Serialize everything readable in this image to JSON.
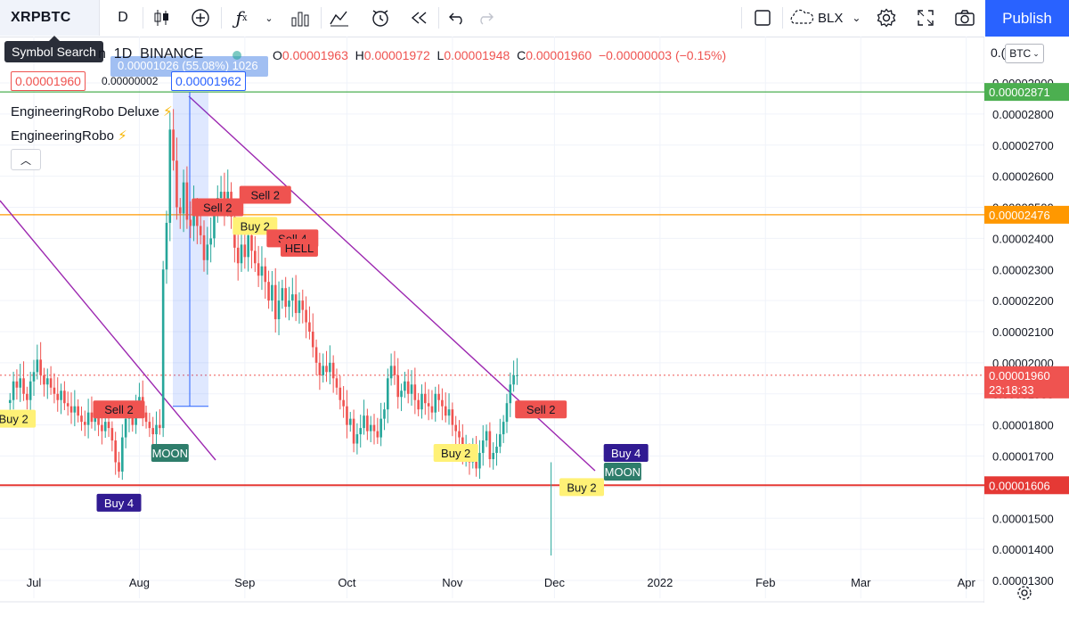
{
  "toolbar": {
    "symbol": "XRPBTC",
    "interval": "D",
    "compare_label": "BLX",
    "publish_label": "Publish",
    "tooltip": "Symbol Search"
  },
  "legend": {
    "title_fragment": "n",
    "interval": "1D",
    "exchange": "BINANCE",
    "o_key": "O",
    "o_val": "0.00001963",
    "h_key": "H",
    "h_val": "0.00001972",
    "l_key": "L",
    "l_val": "0.00001948",
    "c_key": "C",
    "c_val": "0.00001960",
    "change": "−0.00000003 (−0.15%)",
    "range_label": "0.00001026 (55.08%) 1026",
    "bid": "0.00001960",
    "spread": "0.00000002",
    "ask": "0.00001962",
    "indicator1": "EngineeringRobo Deluxe",
    "indicator2": "EngineeringRobo",
    "bolt": "⚡",
    "currency": "BTC",
    "currency_top_fragment": "0.("
  },
  "chart_data": {
    "type": "candlestick",
    "ylim": [
      1.22e-05,
      3.02e-05
    ],
    "y_ticks": [
      "0.00001300",
      "0.00001400",
      "0.00001500",
      "0.00001600",
      "0.00001700",
      "0.00001800",
      "0.00001900",
      "0.00002000",
      "0.00002100",
      "0.00002200",
      "0.00002300",
      "0.00002400",
      "0.00002500",
      "0.00002600",
      "0.00002700",
      "0.00002800",
      "0.00002900"
    ],
    "y_tick_values": [
      1.3e-05,
      1.4e-05,
      1.5e-05,
      1.6e-05,
      1.7e-05,
      1.8e-05,
      1.9e-05,
      2e-05,
      2.1e-05,
      2.2e-05,
      2.3e-05,
      2.4e-05,
      2.5e-05,
      2.6e-05,
      2.7e-05,
      2.8e-05,
      2.9e-05
    ],
    "x_ticks": [
      "Jul",
      "Aug",
      "Sep",
      "Oct",
      "Nov",
      "Dec",
      "2022",
      "Feb",
      "Mar",
      "Apr"
    ],
    "x_tick_days": [
      0,
      31,
      62,
      92,
      123,
      153,
      184,
      215,
      243,
      274
    ],
    "first_day": -7,
    "closes": [
      1.88e-05,
      1.94e-05,
      1.92e-05,
      1.95e-05,
      1.9e-05,
      1.88e-05,
      1.94e-05,
      1.97e-05,
      2.01e-05,
      1.96e-05,
      1.93e-05,
      1.95e-05,
      1.92e-05,
      1.9e-05,
      1.88e-05,
      1.91e-05,
      1.87e-05,
      1.86e-05,
      1.84e-05,
      1.86e-05,
      1.83e-05,
      1.81e-05,
      1.8e-05,
      1.84e-05,
      1.81e-05,
      1.83e-05,
      1.8e-05,
      1.78e-05,
      1.81e-05,
      1.79e-05,
      1.75e-05,
      1.68e-05,
      1.65e-05,
      1.76e-05,
      1.82e-05,
      1.84e-05,
      1.8e-05,
      1.86e-05,
      1.89e-05,
      1.84e-05,
      1.81e-05,
      1.79e-05,
      1.77e-05,
      1.8e-05,
      1.79e-05,
      2.3e-05,
      2.45e-05,
      2.75e-05,
      2.65e-05,
      2.5e-05,
      2.48e-05,
      2.58e-05,
      2.46e-05,
      2.44e-05,
      2.5e-05,
      2.44e-05,
      2.41e-05,
      2.33e-05,
      2.38e-05,
      2.4e-05,
      2.49e-05,
      2.53e-05,
      2.55e-05,
      2.5e-05,
      2.55e-05,
      2.47e-05,
      2.37e-05,
      2.32e-05,
      2.38e-05,
      2.34e-05,
      2.41e-05,
      2.36e-05,
      2.32e-05,
      2.28e-05,
      2.31e-05,
      2.26e-05,
      2.2e-05,
      2.25e-05,
      2.14e-05,
      2.2e-05,
      2.24e-05,
      2.18e-05,
      2.2e-05,
      2.22e-05,
      2.16e-05,
      2.2e-05,
      2.17e-05,
      2.13e-05,
      2.1e-05,
      2.05e-05,
      2e-05,
      1.96e-05,
      1.99e-05,
      1.97e-05,
      2e-05,
      1.95e-05,
      1.92e-05,
      1.88e-05,
      1.86e-05,
      1.8e-05,
      1.82e-05,
      1.74e-05,
      1.77e-05,
      1.79e-05,
      1.83e-05,
      1.78e-05,
      1.8e-05,
      1.78e-05,
      1.76e-05,
      1.82e-05,
      1.85e-05,
      1.95e-05,
      1.99e-05,
      1.96e-05,
      1.89e-05,
      1.91e-05,
      1.94e-05,
      1.9e-05,
      1.93e-05,
      1.88e-05,
      1.85e-05,
      1.9e-05,
      1.87e-05,
      1.86e-05,
      1.84e-05,
      1.9e-05,
      1.88e-05,
      1.86e-05,
      1.83e-05,
      1.85e-05,
      1.8e-05,
      1.78e-05,
      1.76e-05,
      1.7e-05,
      1.72e-05,
      1.68e-05,
      1.73e-05,
      1.66e-05,
      1.71e-05,
      1.75e-05,
      1.78e-05,
      1.69e-05,
      1.71e-05,
      1.73e-05,
      1.77e-05,
      1.81e-05,
      1.87e-05,
      1.93e-05,
      1.96e-05,
      1.96e-05
    ],
    "support_lines": [
      {
        "label": "0.00002871",
        "value": 2.871e-05,
        "color": "#4caf50"
      },
      {
        "label": "0.00002476",
        "value": 2.476e-05,
        "color": "#ff9800"
      },
      {
        "label": "0.00001606",
        "value": 1.606e-05,
        "color": "#e53935"
      }
    ],
    "last_price": {
      "label": "0.00001960",
      "value": 1.96e-05,
      "countdown": "23:18:33"
    },
    "signals": [
      {
        "text": "Buy 2",
        "kind": "buy",
        "day": -6,
        "price": 1.82e-05
      },
      {
        "text": "Sell 2",
        "kind": "sell",
        "day": 25,
        "price": 1.85e-05
      },
      {
        "text": "MOON",
        "kind": "moon",
        "day": 40,
        "price": 1.71e-05
      },
      {
        "text": "Buy 4",
        "kind": "buy4",
        "day": 25,
        "price": 1.55e-05
      },
      {
        "text": "Sell 2",
        "kind": "sell",
        "day": 54,
        "price": 2.5e-05
      },
      {
        "text": "Buy 2",
        "kind": "buy",
        "day": 65,
        "price": 2.44e-05
      },
      {
        "text": "Sell 2",
        "kind": "sell",
        "day": 68,
        "price": 2.54e-05
      },
      {
        "text": "Sell 4",
        "kind": "sell",
        "day": 76,
        "price": 2.4e-05
      },
      {
        "text": "HELL",
        "kind": "sell",
        "day": 78,
        "price": 2.37e-05
      },
      {
        "text": "Buy 2",
        "kind": "buy",
        "day": 124,
        "price": 1.71e-05
      },
      {
        "text": "Sell 2",
        "kind": "sell",
        "day": 149,
        "price": 1.85e-05
      },
      {
        "text": "Buy 2",
        "kind": "buy",
        "day": 161,
        "price": 1.6e-05
      },
      {
        "text": "Buy 4",
        "kind": "buy4",
        "day": 174,
        "price": 1.71e-05
      },
      {
        "text": "MOON",
        "kind": "moon",
        "day": 173,
        "price": 1.65e-05
      }
    ]
  }
}
